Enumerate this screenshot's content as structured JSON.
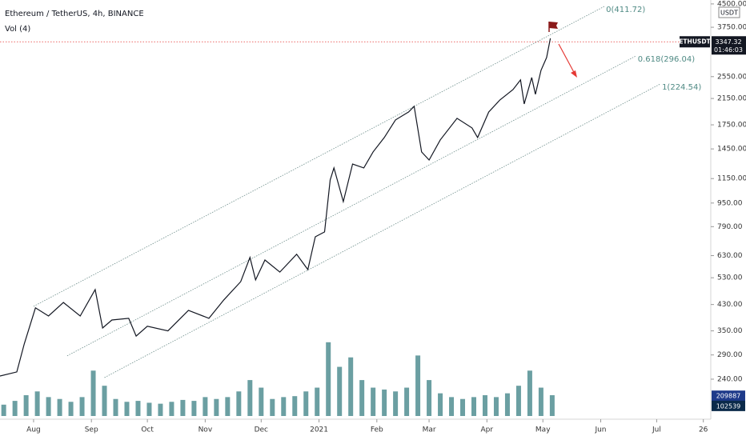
{
  "chart_data": {
    "type": "line",
    "title": "Ethereum / TetherUS, 4h, BINANCE",
    "currency": "USDT",
    "countdown": "01:46:03",
    "last_price": 3347.32,
    "log_scale": true,
    "grid": false,
    "x": [
      -18,
      -9,
      -5,
      1,
      8,
      16,
      25,
      33,
      37,
      42,
      51,
      55,
      61,
      72,
      83,
      94,
      102,
      111,
      116,
      119,
      124,
      132,
      141,
      147,
      151,
      156,
      159,
      161,
      166,
      171,
      177,
      182,
      188,
      194,
      201,
      204,
      208,
      212,
      218,
      227,
      235,
      238,
      244,
      250,
      257,
      261,
      263,
      267,
      269,
      272,
      275,
      277
    ],
    "series": [
      {
        "name": "ETHUSDT",
        "color": "#131722",
        "values": [
          246,
          254,
          316,
          419,
          393,
          437,
          393,
          483,
          358,
          381,
          386,
          336,
          363,
          350,
          411,
          386,
          446,
          514,
          621,
          521,
          609,
          554,
          637,
          565,
          730,
          758,
          1138,
          1250,
          961,
          1289,
          1250,
          1416,
          1585,
          1818,
          1935,
          2022,
          1416,
          1330,
          1555,
          1841,
          1708,
          1585,
          1935,
          2126,
          2305,
          2486,
          2060,
          2532,
          2221,
          2679,
          2960,
          3440
        ]
      }
    ],
    "xlim": [
      -18,
      363
    ],
    "xticks": [
      {
        "value": 0,
        "label": "Aug"
      },
      {
        "value": 31,
        "label": "Sep"
      },
      {
        "value": 61,
        "label": "Oct"
      },
      {
        "value": 92,
        "label": "Nov"
      },
      {
        "value": 122,
        "label": "Dec"
      },
      {
        "value": 153,
        "label": "2021"
      },
      {
        "value": 184,
        "label": "Feb"
      },
      {
        "value": 212,
        "label": "Mar"
      },
      {
        "value": 243,
        "label": "Apr"
      },
      {
        "value": 273,
        "label": "May"
      },
      {
        "value": 304,
        "label": "Jun"
      },
      {
        "value": 334,
        "label": "Jul"
      },
      {
        "value": 359,
        "label": "26"
      }
    ],
    "ylim": [
      180,
      4640
    ],
    "yticks": [
      {
        "value": 4500,
        "label": "4500.00"
      },
      {
        "value": 3750,
        "label": "3750.00"
      },
      {
        "value": 2550,
        "label": "2550.00"
      },
      {
        "value": 2150,
        "label": "2150.00"
      },
      {
        "value": 1750,
        "label": "1750.00"
      },
      {
        "value": 1450,
        "label": "1450.00"
      },
      {
        "value": 1150,
        "label": "1150.00"
      },
      {
        "value": 950,
        "label": "950.00"
      },
      {
        "value": 790,
        "label": "790.00"
      },
      {
        "value": 630,
        "label": "630.00"
      },
      {
        "value": 530,
        "label": "530.00"
      },
      {
        "value": 430,
        "label": "430.00"
      },
      {
        "value": 350,
        "label": "350.00"
      },
      {
        "value": 290,
        "label": "290.00"
      },
      {
        "value": 240,
        "label": "240.00"
      }
    ],
    "channel": [
      {
        "label": "0(411.72)",
        "x": [
          0,
          306
        ],
        "values": [
          424,
          4416
        ]
      },
      {
        "label": "0.618(296.04)",
        "x": [
          18,
          323
        ],
        "values": [
          288,
          3000
        ]
      },
      {
        "label": "1(224.54)",
        "x": [
          38,
          336
        ],
        "values": [
          243,
          2409
        ]
      }
    ],
    "volume": {
      "label": "Vol (4)",
      "color": "#3a7f83",
      "ylim": [
        0,
        1100000
      ],
      "last": 209887,
      "average": 102539,
      "x": [
        -16,
        -10,
        -4,
        2,
        8,
        14,
        20,
        26,
        32,
        38,
        44,
        50,
        56,
        62,
        68,
        74,
        80,
        86,
        92,
        98,
        104,
        110,
        116,
        122,
        128,
        134,
        140,
        146,
        152,
        158,
        164,
        170,
        176,
        182,
        188,
        194,
        200,
        206,
        212,
        218,
        224,
        230,
        236,
        242,
        248,
        254,
        260,
        266,
        272,
        278
      ],
      "values": [
        120000,
        160000,
        220000,
        260000,
        200000,
        180000,
        150000,
        200000,
        480000,
        320000,
        180000,
        150000,
        160000,
        140000,
        130000,
        150000,
        170000,
        160000,
        200000,
        180000,
        200000,
        260000,
        380000,
        300000,
        180000,
        200000,
        210000,
        260000,
        300000,
        780000,
        520000,
        620000,
        380000,
        300000,
        280000,
        260000,
        300000,
        640000,
        380000,
        240000,
        200000,
        180000,
        200000,
        220000,
        200000,
        240000,
        320000,
        480000,
        300000,
        220000
      ]
    }
  }
}
